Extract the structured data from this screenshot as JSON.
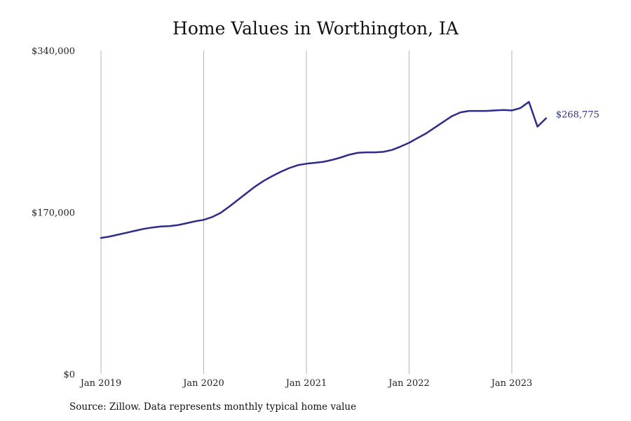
{
  "title": "Home Values in Worthington, IA",
  "source": "Source: Zillow. Data represents monthly typical home value",
  "colors": {
    "line": "#2e2b8a",
    "grid": "#b5b5b5",
    "text": "#111111"
  },
  "chart_data": {
    "type": "line",
    "title": "Home Values in Worthington, IA",
    "xlabel": "",
    "ylabel": "",
    "ylim": [
      0,
      340000
    ],
    "yticks": [
      0,
      170000,
      340000
    ],
    "ytick_labels": [
      "$0",
      "$170,000",
      "$340,000"
    ],
    "xticks": [
      "2019-01",
      "2020-01",
      "2021-01",
      "2022-01",
      "2023-01"
    ],
    "xtick_labels": [
      "Jan 2019",
      "Jan 2020",
      "Jan 2021",
      "Jan 2022",
      "Jan 2023"
    ],
    "xlim": [
      "2019-01",
      "2023-12"
    ],
    "grid": "vertical",
    "end_label": "$268,775",
    "series": [
      {
        "x": [
          "2019-01",
          "2019-02",
          "2019-03",
          "2019-04",
          "2019-05",
          "2019-06",
          "2019-07",
          "2019-08",
          "2019-09",
          "2019-10",
          "2019-11",
          "2019-12",
          "2020-01",
          "2020-02",
          "2020-03",
          "2020-04",
          "2020-05",
          "2020-06",
          "2020-07",
          "2020-08",
          "2020-09",
          "2020-10",
          "2020-11",
          "2020-12",
          "2021-01",
          "2021-02",
          "2021-03",
          "2021-04",
          "2021-05",
          "2021-06",
          "2021-07",
          "2021-08",
          "2021-09",
          "2021-10",
          "2021-11",
          "2021-12",
          "2022-01",
          "2022-02",
          "2022-03",
          "2022-04",
          "2022-05",
          "2022-06",
          "2022-07",
          "2022-08",
          "2022-09",
          "2022-10",
          "2022-11",
          "2022-12",
          "2023-01",
          "2023-02",
          "2023-03",
          "2023-04",
          "2023-05"
        ],
        "values": [
          143000,
          144500,
          146500,
          148500,
          150500,
          152500,
          154000,
          155000,
          155500,
          156500,
          158500,
          160500,
          162000,
          165000,
          169500,
          176000,
          183000,
          190000,
          197000,
          203000,
          208000,
          212500,
          216500,
          219500,
          221000,
          222000,
          223000,
          225000,
          227500,
          230500,
          232500,
          233000,
          233000,
          233500,
          235500,
          239000,
          243000,
          248000,
          253000,
          259000,
          265000,
          271000,
          275000,
          276500,
          276500,
          276500,
          277000,
          277500,
          277000,
          279500,
          286000,
          297000,
          268775
        ]
      }
    ]
  }
}
